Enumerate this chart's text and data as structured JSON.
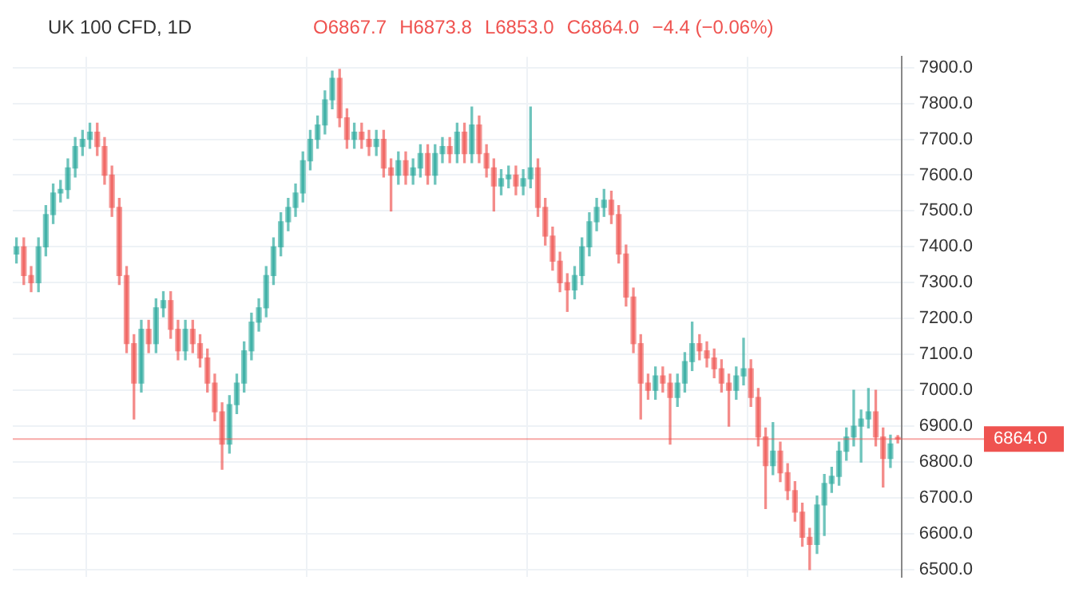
{
  "chart_data": {
    "type": "candlestick",
    "title": "UK 100 CFD, 1D",
    "annotations": [
      "O6867.7",
      "H6873.8",
      "L6853.0",
      "C6864.0",
      "−4.4 (−0.06%)"
    ],
    "categories": [
      null,
      null,
      null,
      null,
      null,
      null,
      null,
      null,
      null,
      null,
      null,
      null,
      null,
      null,
      null,
      null,
      null,
      null,
      null,
      null,
      null,
      null,
      null,
      null,
      null,
      null,
      null,
      null,
      null,
      null,
      null,
      null,
      null,
      null,
      null,
      null,
      null,
      null,
      null,
      null,
      null,
      null,
      null,
      null,
      null,
      null,
      null,
      null,
      null,
      null,
      null,
      null,
      null,
      null,
      null,
      null,
      null,
      null,
      null,
      null,
      null,
      null,
      null,
      null,
      null,
      null,
      null,
      null,
      null,
      null,
      null,
      null,
      null,
      null,
      null,
      null,
      null,
      null,
      null,
      null,
      null,
      null,
      null,
      null,
      null,
      null,
      null,
      null,
      null,
      null,
      null,
      null,
      null,
      null,
      null,
      null,
      null,
      null,
      null,
      null,
      null,
      null,
      null,
      null,
      null,
      null,
      null,
      null,
      null,
      null,
      null,
      null,
      null,
      null,
      null,
      null,
      null,
      null,
      null,
      null,
      null
    ],
    "ohlc": [
      [
        7380,
        7425,
        7355,
        7400
      ],
      [
        7400,
        7425,
        7295,
        7320
      ],
      [
        7320,
        7345,
        7275,
        7300
      ],
      [
        7300,
        7425,
        7275,
        7400
      ],
      [
        7400,
        7515,
        7375,
        7490
      ],
      [
        7490,
        7575,
        7465,
        7550
      ],
      [
        7550,
        7585,
        7525,
        7560
      ],
      [
        7560,
        7645,
        7535,
        7620
      ],
      [
        7620,
        7705,
        7595,
        7680
      ],
      [
        7680,
        7725,
        7655,
        7700
      ],
      [
        7700,
        7745,
        7675,
        7720
      ],
      [
        7720,
        7745,
        7655,
        7680
      ],
      [
        7680,
        7705,
        7575,
        7600
      ],
      [
        7600,
        7625,
        7485,
        7510
      ],
      [
        7510,
        7535,
        7295,
        7320
      ],
      [
        7320,
        7345,
        7105,
        7130
      ],
      [
        7130,
        7155,
        6920,
        7020
      ],
      [
        7020,
        7195,
        6995,
        7170
      ],
      [
        7170,
        7195,
        7105,
        7130
      ],
      [
        7130,
        7255,
        7105,
        7230
      ],
      [
        7230,
        7275,
        7205,
        7250
      ],
      [
        7250,
        7275,
        7145,
        7170
      ],
      [
        7170,
        7195,
        7085,
        7110
      ],
      [
        7110,
        7195,
        7085,
        7170
      ],
      [
        7170,
        7195,
        7105,
        7130
      ],
      [
        7130,
        7155,
        7065,
        7090
      ],
      [
        7090,
        7115,
        6995,
        7020
      ],
      [
        7020,
        7045,
        6915,
        6940
      ],
      [
        6940,
        6965,
        6780,
        6850
      ],
      [
        6850,
        6985,
        6825,
        6960
      ],
      [
        6960,
        7045,
        6935,
        7020
      ],
      [
        7020,
        7135,
        6995,
        7110
      ],
      [
        7110,
        7215,
        7085,
        7190
      ],
      [
        7190,
        7255,
        7165,
        7230
      ],
      [
        7230,
        7345,
        7205,
        7320
      ],
      [
        7320,
        7425,
        7295,
        7400
      ],
      [
        7400,
        7495,
        7375,
        7470
      ],
      [
        7470,
        7535,
        7445,
        7510
      ],
      [
        7510,
        7575,
        7485,
        7550
      ],
      [
        7550,
        7665,
        7525,
        7640
      ],
      [
        7640,
        7725,
        7615,
        7700
      ],
      [
        7700,
        7765,
        7675,
        7740
      ],
      [
        7740,
        7835,
        7715,
        7810
      ],
      [
        7810,
        7890,
        7785,
        7870
      ],
      [
        7870,
        7895,
        7735,
        7760
      ],
      [
        7760,
        7785,
        7675,
        7700
      ],
      [
        7700,
        7745,
        7675,
        7720
      ],
      [
        7720,
        7745,
        7675,
        7700
      ],
      [
        7700,
        7725,
        7655,
        7680
      ],
      [
        7680,
        7725,
        7655,
        7700
      ],
      [
        7700,
        7725,
        7595,
        7620
      ],
      [
        7620,
        7645,
        7500,
        7600
      ],
      [
        7600,
        7665,
        7575,
        7640
      ],
      [
        7640,
        7665,
        7575,
        7600
      ],
      [
        7600,
        7645,
        7575,
        7620
      ],
      [
        7620,
        7685,
        7595,
        7660
      ],
      [
        7660,
        7685,
        7575,
        7600
      ],
      [
        7600,
        7685,
        7575,
        7660
      ],
      [
        7660,
        7705,
        7635,
        7680
      ],
      [
        7680,
        7705,
        7635,
        7660
      ],
      [
        7660,
        7745,
        7635,
        7720
      ],
      [
        7720,
        7745,
        7635,
        7660
      ],
      [
        7660,
        7790,
        7635,
        7740
      ],
      [
        7740,
        7765,
        7635,
        7660
      ],
      [
        7660,
        7685,
        7595,
        7620
      ],
      [
        7620,
        7645,
        7500,
        7570
      ],
      [
        7570,
        7615,
        7545,
        7590
      ],
      [
        7590,
        7625,
        7565,
        7600
      ],
      [
        7600,
        7625,
        7545,
        7570
      ],
      [
        7570,
        7615,
        7545,
        7590
      ],
      [
        7590,
        7790,
        7565,
        7620
      ],
      [
        7620,
        7645,
        7485,
        7510
      ],
      [
        7510,
        7535,
        7405,
        7430
      ],
      [
        7430,
        7455,
        7335,
        7360
      ],
      [
        7360,
        7385,
        7275,
        7300
      ],
      [
        7300,
        7325,
        7220,
        7280
      ],
      [
        7280,
        7345,
        7255,
        7320
      ],
      [
        7320,
        7425,
        7295,
        7400
      ],
      [
        7400,
        7495,
        7375,
        7470
      ],
      [
        7470,
        7535,
        7445,
        7510
      ],
      [
        7510,
        7560,
        7485,
        7530
      ],
      [
        7530,
        7555,
        7465,
        7490
      ],
      [
        7490,
        7515,
        7355,
        7380
      ],
      [
        7380,
        7405,
        7235,
        7260
      ],
      [
        7260,
        7285,
        7105,
        7130
      ],
      [
        7130,
        7155,
        6920,
        7020
      ],
      [
        7020,
        7045,
        6975,
        7000
      ],
      [
        7000,
        7065,
        6975,
        7040
      ],
      [
        7040,
        7065,
        6995,
        7020
      ],
      [
        7020,
        7045,
        6850,
        6980
      ],
      [
        6980,
        7045,
        6955,
        7020
      ],
      [
        7020,
        7105,
        6995,
        7080
      ],
      [
        7080,
        7190,
        7055,
        7130
      ],
      [
        7130,
        7155,
        7085,
        7110
      ],
      [
        7110,
        7135,
        7065,
        7090
      ],
      [
        7090,
        7115,
        7035,
        7060
      ],
      [
        7060,
        7085,
        6995,
        7020
      ],
      [
        7020,
        7045,
        6900,
        7000
      ],
      [
        7000,
        7065,
        6975,
        7040
      ],
      [
        7040,
        7145,
        7015,
        7060
      ],
      [
        7060,
        7085,
        6955,
        6980
      ],
      [
        6980,
        7005,
        6845,
        6870
      ],
      [
        6870,
        6895,
        6670,
        6790
      ],
      [
        6790,
        6910,
        6765,
        6830
      ],
      [
        6830,
        6855,
        6745,
        6770
      ],
      [
        6770,
        6795,
        6695,
        6720
      ],
      [
        6720,
        6745,
        6635,
        6660
      ],
      [
        6660,
        6685,
        6565,
        6590
      ],
      [
        6590,
        6615,
        6500,
        6570
      ],
      [
        6570,
        6705,
        6545,
        6680
      ],
      [
        6680,
        6765,
        6595,
        6740
      ],
      [
        6740,
        6785,
        6715,
        6760
      ],
      [
        6760,
        6855,
        6735,
        6830
      ],
      [
        6830,
        6895,
        6805,
        6870
      ],
      [
        6870,
        7000,
        6845,
        6900
      ],
      [
        6900,
        6945,
        6800,
        6920
      ],
      [
        6920,
        7005,
        6895,
        6940
      ],
      [
        6940,
        7000,
        6845,
        6870
      ],
      [
        6870,
        6895,
        6730,
        6810
      ],
      [
        6810,
        6875,
        6785,
        6850
      ],
      [
        6867.7,
        6873.8,
        6853.0,
        6864.0
      ]
    ],
    "ylim": [
      6480,
      7930
    ],
    "yticks": [
      {
        "value": 6500,
        "label": "6500.0"
      },
      {
        "value": 6600,
        "label": "6600.0"
      },
      {
        "value": 6700,
        "label": "6700.0"
      },
      {
        "value": 6800,
        "label": "6800.0"
      },
      {
        "value": 6900,
        "label": "6900.0"
      },
      {
        "value": 7000,
        "label": "7000.0"
      },
      {
        "value": 7100,
        "label": "7100.0"
      },
      {
        "value": 7200,
        "label": "7200.0"
      },
      {
        "value": 7300,
        "label": "7300.0"
      },
      {
        "value": 7400,
        "label": "7400.0"
      },
      {
        "value": 7500,
        "label": "7500.0"
      },
      {
        "value": 7600,
        "label": "7600.0"
      },
      {
        "value": 7700,
        "label": "7700.0"
      },
      {
        "value": 7800,
        "label": "7800.0"
      },
      {
        "value": 7900,
        "label": "7900.0"
      }
    ],
    "ref_lines": [
      {
        "axis": "y",
        "value": 6864.0,
        "label": "6864.0",
        "color": "#ef5350"
      }
    ],
    "grid": true
  }
}
